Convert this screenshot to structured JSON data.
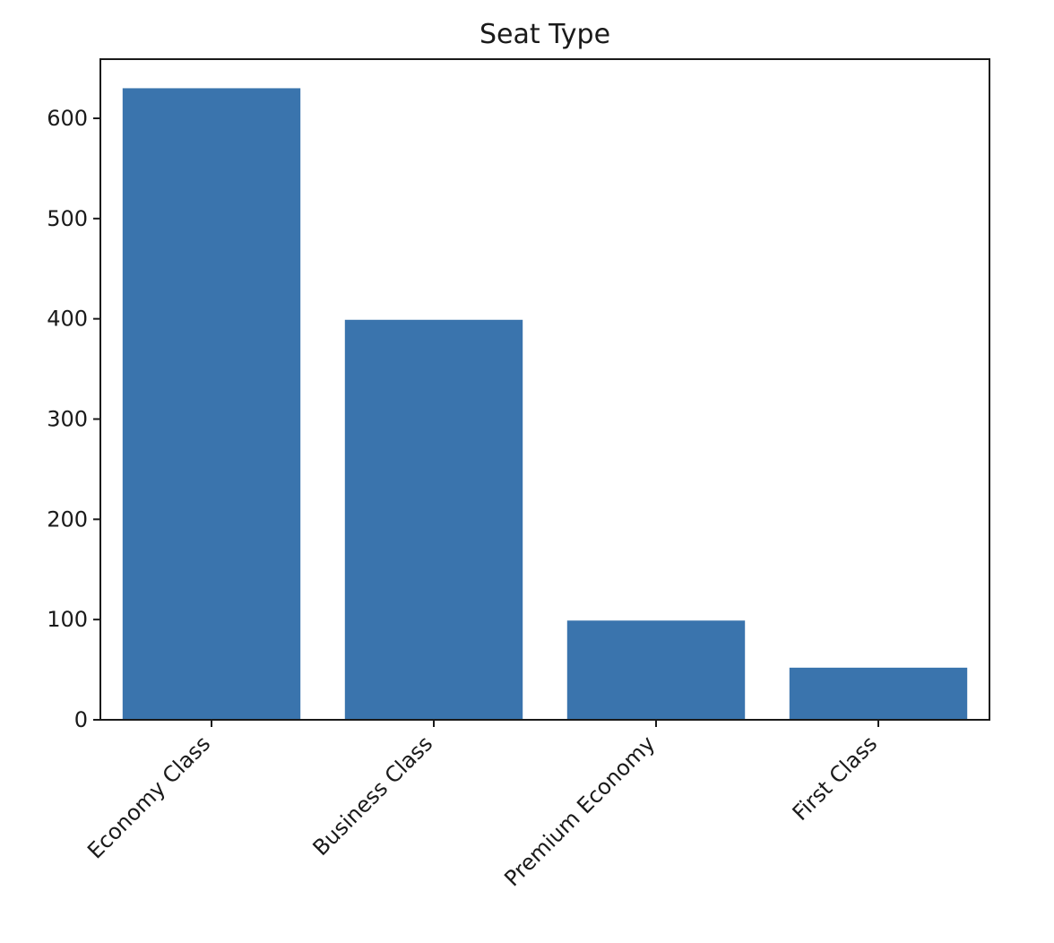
{
  "chart_data": {
    "type": "bar",
    "title": "Seat Type",
    "xlabel": "",
    "ylabel": "",
    "categories": [
      "Economy Class",
      "Business Class",
      "Premium Economy",
      "First Class"
    ],
    "values": [
      630,
      399,
      99,
      52
    ],
    "ylim": [
      0,
      659
    ],
    "yticks": [
      0,
      100,
      200,
      300,
      400,
      500,
      600
    ],
    "grid": false,
    "bar_color": "#3a74ad",
    "axis_color": "#1a1a1a"
  }
}
